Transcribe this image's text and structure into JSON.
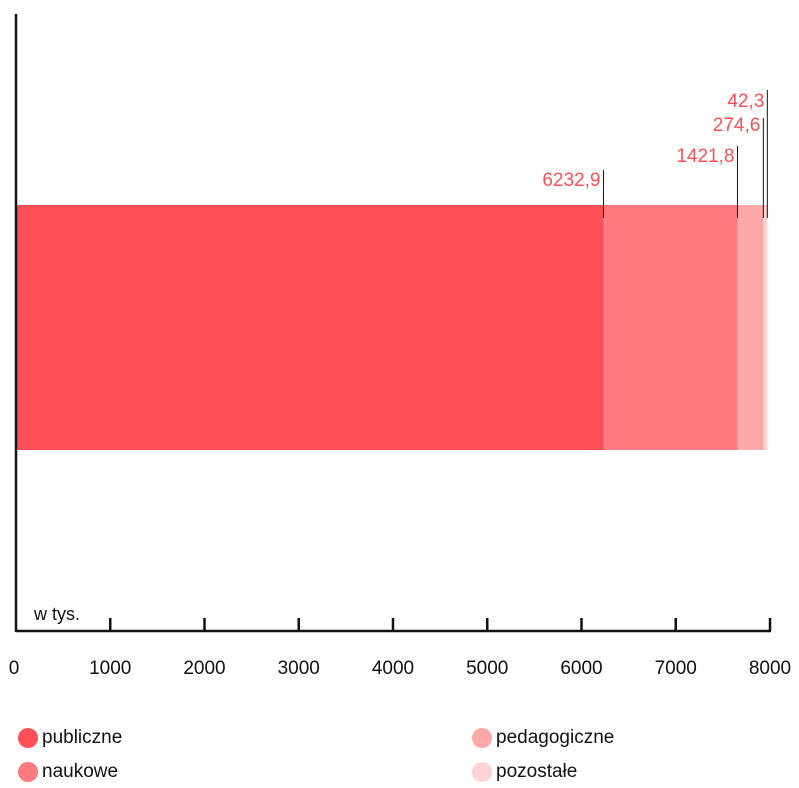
{
  "chart_data": {
    "type": "bar",
    "orientation": "horizontal",
    "stacked": true,
    "unit_label": "w tys.",
    "xlim": [
      0,
      8000
    ],
    "x_ticks": [
      "0",
      "1000",
      "2000",
      "3000",
      "4000",
      "5000",
      "6000",
      "7000",
      "8000"
    ],
    "grid": false,
    "legend_placement": "bottom",
    "series": [
      {
        "name": "publiczne",
        "value": 6232.9,
        "label": "6232,9",
        "color": "#ff5058"
      },
      {
        "name": "naukowe",
        "value": 1421.8,
        "label": "1421,8",
        "color": "#ff7a7f"
      },
      {
        "name": "pedagogiczne",
        "value": 274.6,
        "label": "274,6",
        "color": "#ffa8aa"
      },
      {
        "name": "pozostałe",
        "value": 42.3,
        "label": "42,3",
        "color": "#ffd3d4"
      }
    ],
    "label_color": "#ff5058"
  }
}
